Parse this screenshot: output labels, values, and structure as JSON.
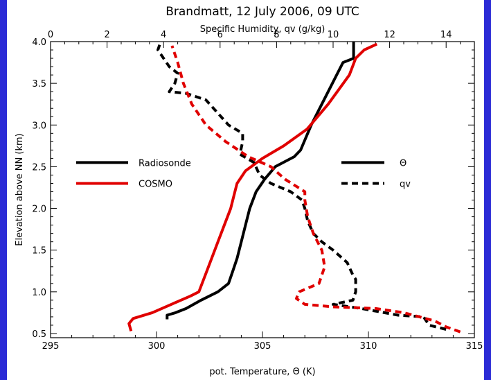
{
  "chart_data": {
    "type": "line",
    "title": "Brandmatt, 12 July 2006, 09 UTC",
    "x_top_label": "Specific Humidity, qv (g/kg)",
    "x_bottom_label": "pot. Temperature, Θ (K)",
    "ylabel": "Elevation above NN (km)",
    "x_bottom_range": [
      295,
      315
    ],
    "x_top_range": [
      0,
      15
    ],
    "ylim": [
      0.45,
      4.0
    ],
    "x_bottom_ticks": [
      "295",
      "300",
      "305",
      "310",
      "315"
    ],
    "x_top_ticks": [
      "0",
      "2",
      "4",
      "6",
      "8",
      "10",
      "12",
      "14"
    ],
    "y_ticks": [
      "0.5",
      "1.0",
      "1.5",
      "2.0",
      "2.5",
      "3.0",
      "3.5",
      "4.0"
    ],
    "legend_sources": [
      {
        "name": "Radiosonde",
        "color": "#000000"
      },
      {
        "name": "COSMO",
        "color": "#e00000"
      }
    ],
    "legend_variables": [
      {
        "name": "Θ",
        "style": "solid"
      },
      {
        "name": "qv",
        "style": "dashed"
      }
    ],
    "series": [
      {
        "name": "Radiosonde Θ",
        "axis": "bottom",
        "color": "#000000",
        "dash": false,
        "points": [
          [
            300.5,
            0.67
          ],
          [
            300.5,
            0.72
          ],
          [
            300.9,
            0.75
          ],
          [
            301.4,
            0.8
          ],
          [
            302.1,
            0.9
          ],
          [
            302.9,
            1.0
          ],
          [
            303.4,
            1.1
          ],
          [
            303.6,
            1.25
          ],
          [
            303.8,
            1.4
          ],
          [
            304.0,
            1.6
          ],
          [
            304.2,
            1.8
          ],
          [
            304.4,
            2.0
          ],
          [
            304.7,
            2.2
          ],
          [
            305.1,
            2.35
          ],
          [
            305.6,
            2.5
          ],
          [
            306.5,
            2.62
          ],
          [
            306.8,
            2.7
          ],
          [
            307.3,
            3.0
          ],
          [
            308.0,
            3.35
          ],
          [
            308.8,
            3.75
          ],
          [
            309.3,
            3.8
          ],
          [
            309.3,
            3.9
          ],
          [
            309.3,
            4.0
          ]
        ]
      },
      {
        "name": "COSMO Θ",
        "axis": "bottom",
        "color": "#e00000",
        "dash": false,
        "points": [
          [
            298.8,
            0.53
          ],
          [
            298.7,
            0.62
          ],
          [
            298.9,
            0.68
          ],
          [
            299.8,
            0.75
          ],
          [
            300.7,
            0.85
          ],
          [
            301.6,
            0.95
          ],
          [
            302.0,
            1.0
          ],
          [
            302.3,
            1.2
          ],
          [
            302.6,
            1.4
          ],
          [
            302.9,
            1.6
          ],
          [
            303.2,
            1.8
          ],
          [
            303.5,
            2.0
          ],
          [
            303.7,
            2.2
          ],
          [
            303.8,
            2.3
          ],
          [
            304.2,
            2.45
          ],
          [
            305.0,
            2.6
          ],
          [
            306.0,
            2.75
          ],
          [
            307.1,
            2.95
          ],
          [
            308.1,
            3.25
          ],
          [
            309.1,
            3.6
          ],
          [
            309.4,
            3.8
          ],
          [
            309.8,
            3.9
          ],
          [
            310.4,
            3.97
          ]
        ]
      },
      {
        "name": "Radiosonde qv",
        "axis": "top",
        "color": "#000000",
        "dash": true,
        "points": [
          [
            14.0,
            0.55
          ],
          [
            13.4,
            0.6
          ],
          [
            13.2,
            0.7
          ],
          [
            12.3,
            0.72
          ],
          [
            11.0,
            0.8
          ],
          [
            10.0,
            0.85
          ],
          [
            10.7,
            0.9
          ],
          [
            10.8,
            1.0
          ],
          [
            10.8,
            1.15
          ],
          [
            10.7,
            1.2
          ],
          [
            10.5,
            1.35
          ],
          [
            10.0,
            1.5
          ],
          [
            9.6,
            1.6
          ],
          [
            9.3,
            1.7
          ],
          [
            9.1,
            1.85
          ],
          [
            9.0,
            2.0
          ],
          [
            8.9,
            2.1
          ],
          [
            8.5,
            2.2
          ],
          [
            7.8,
            2.3
          ],
          [
            7.4,
            2.4
          ],
          [
            7.2,
            2.55
          ],
          [
            6.7,
            2.65
          ],
          [
            6.8,
            2.8
          ],
          [
            6.8,
            2.9
          ],
          [
            6.3,
            3.0
          ],
          [
            5.9,
            3.15
          ],
          [
            5.5,
            3.3
          ],
          [
            4.8,
            3.38
          ],
          [
            4.2,
            3.4
          ],
          [
            4.4,
            3.5
          ],
          [
            4.5,
            3.62
          ],
          [
            4.2,
            3.7
          ],
          [
            4.0,
            3.8
          ],
          [
            3.8,
            3.9
          ],
          [
            3.9,
            4.0
          ]
        ]
      },
      {
        "name": "COSMO qv",
        "axis": "top",
        "color": "#e00000",
        "dash": true,
        "points": [
          [
            14.5,
            0.52
          ],
          [
            14.0,
            0.58
          ],
          [
            13.6,
            0.65
          ],
          [
            12.5,
            0.75
          ],
          [
            11.5,
            0.8
          ],
          [
            10.0,
            0.82
          ],
          [
            9.0,
            0.85
          ],
          [
            8.7,
            0.92
          ],
          [
            8.8,
            1.0
          ],
          [
            9.5,
            1.1
          ],
          [
            9.7,
            1.3
          ],
          [
            9.6,
            1.5
          ],
          [
            9.3,
            1.7
          ],
          [
            9.1,
            1.9
          ],
          [
            9.0,
            2.1
          ],
          [
            9.0,
            2.2
          ],
          [
            8.3,
            2.35
          ],
          [
            7.8,
            2.5
          ],
          [
            7.0,
            2.62
          ],
          [
            6.2,
            2.8
          ],
          [
            5.5,
            3.0
          ],
          [
            5.0,
            3.25
          ],
          [
            4.7,
            3.5
          ],
          [
            4.5,
            3.75
          ],
          [
            4.3,
            3.95
          ]
        ]
      }
    ]
  }
}
